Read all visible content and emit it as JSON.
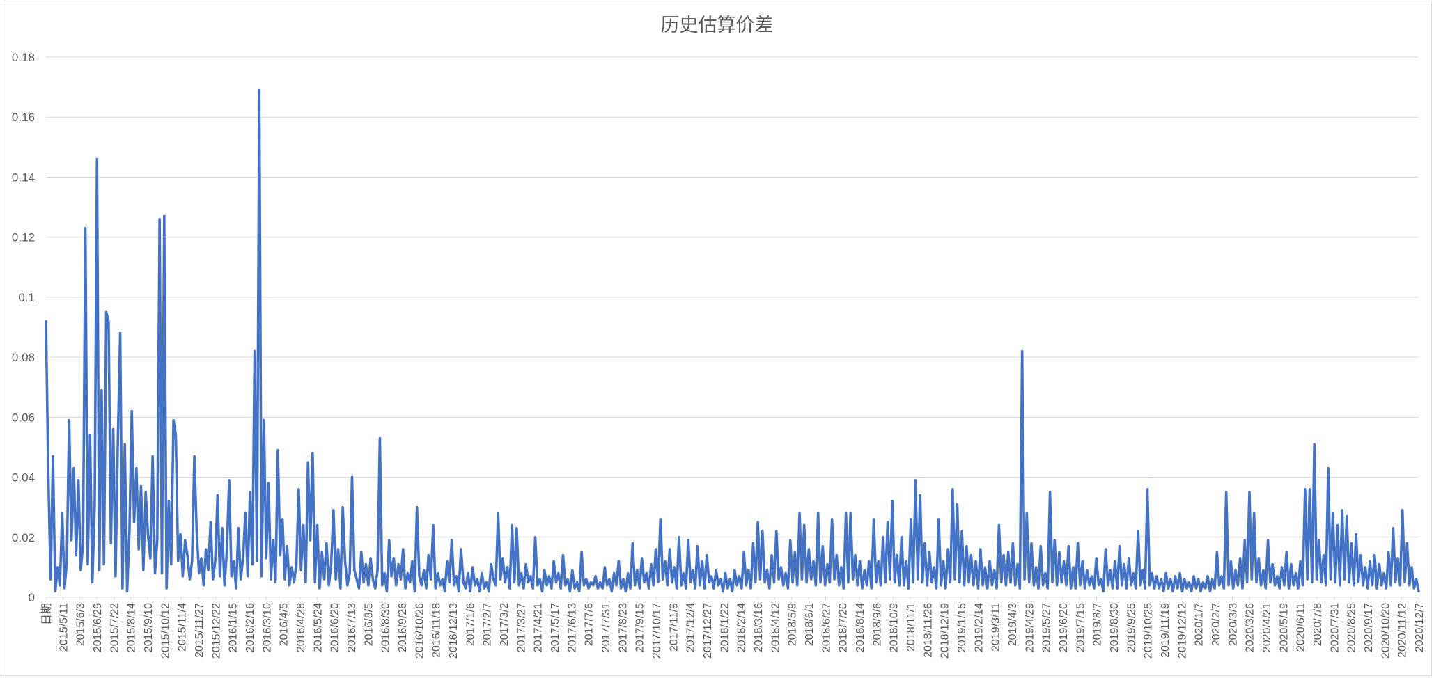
{
  "chart_data": {
    "type": "line",
    "title": "历史估算价差",
    "xlabel": "",
    "ylabel": "",
    "ylim": [
      0,
      0.18
    ],
    "y_ticks": [
      "0",
      "0.02",
      "0.04",
      "0.06",
      "0.08",
      "0.1",
      "0.12",
      "0.14",
      "0.16",
      "0.18"
    ],
    "grid": true,
    "legend": "none",
    "first_category_label": "日期",
    "x_tick_labels": [
      "2015/5/11",
      "2015/6/3",
      "2015/6/29",
      "2015/7/22",
      "2015/8/14",
      "2015/9/10",
      "2015/10/12",
      "2015/11/4",
      "2015/11/27",
      "2015/12/22",
      "2016/1/15",
      "2016/2/16",
      "2016/3/10",
      "2016/4/5",
      "2016/4/28",
      "2016/5/24",
      "2016/6/20",
      "2016/7/13",
      "2016/8/5",
      "2016/8/30",
      "2016/9/26",
      "2016/10/26",
      "2016/11/18",
      "2016/12/13",
      "2017/1/6",
      "2017/2/7",
      "2017/3/2",
      "2017/3/27",
      "2017/4/21",
      "2017/5/17",
      "2017/6/13",
      "2017/7/6",
      "2017/7/31",
      "2017/8/23",
      "2017/9/15",
      "2017/10/17",
      "2017/11/9",
      "2017/12/4",
      "2017/12/27",
      "2018/1/22",
      "2018/2/14",
      "2018/3/16",
      "2018/4/12",
      "2018/5/9",
      "2018/6/1",
      "2018/6/27",
      "2018/7/20",
      "2018/8/14",
      "2018/9/6",
      "2018/10/9",
      "2018/11/1",
      "2018/11/26",
      "2018/12/19",
      "2019/1/15",
      "2019/2/14",
      "2019/3/11",
      "2019/4/3",
      "2019/4/29",
      "2019/5/27",
      "2019/6/20",
      "2019/7/15",
      "2019/8/7",
      "2019/8/30",
      "2019/9/25",
      "2019/10/25",
      "2019/11/19",
      "2019/12/12",
      "2020/1/7",
      "2020/2/7",
      "2020/3/3",
      "2020/3/26",
      "2020/4/21",
      "2020/5/19",
      "2020/6/11",
      "2020/7/8",
      "2020/7/31",
      "2020/8/25",
      "2020/9/17",
      "2020/10/20",
      "2020/11/12",
      "2020/12/7"
    ],
    "series": [
      {
        "color": "#4472c4",
        "x_start": "2015/4/30",
        "x_end": "2020/12/31",
        "values": [
          0.092,
          0.041,
          0.006,
          0.047,
          0.002,
          0.01,
          0.004,
          0.028,
          0.003,
          0.012,
          0.059,
          0.019,
          0.043,
          0.014,
          0.039,
          0.009,
          0.018,
          0.123,
          0.011,
          0.054,
          0.005,
          0.031,
          0.146,
          0.009,
          0.069,
          0.011,
          0.095,
          0.092,
          0.018,
          0.056,
          0.007,
          0.052,
          0.088,
          0.003,
          0.051,
          0.002,
          0.022,
          0.062,
          0.025,
          0.043,
          0.016,
          0.037,
          0.009,
          0.035,
          0.021,
          0.013,
          0.047,
          0.008,
          0.019,
          0.126,
          0.008,
          0.127,
          0.003,
          0.032,
          0.011,
          0.059,
          0.054,
          0.012,
          0.021,
          0.007,
          0.019,
          0.014,
          0.006,
          0.012,
          0.047,
          0.022,
          0.008,
          0.013,
          0.004,
          0.016,
          0.009,
          0.025,
          0.006,
          0.012,
          0.034,
          0.007,
          0.023,
          0.004,
          0.015,
          0.039,
          0.007,
          0.012,
          0.003,
          0.023,
          0.006,
          0.013,
          0.028,
          0.007,
          0.035,
          0.011,
          0.082,
          0.012,
          0.169,
          0.007,
          0.059,
          0.013,
          0.038,
          0.006,
          0.019,
          0.005,
          0.049,
          0.014,
          0.026,
          0.006,
          0.017,
          0.004,
          0.01,
          0.005,
          0.011,
          0.036,
          0.009,
          0.024,
          0.005,
          0.045,
          0.019,
          0.048,
          0.005,
          0.024,
          0.003,
          0.015,
          0.006,
          0.018,
          0.004,
          0.011,
          0.029,
          0.006,
          0.016,
          0.003,
          0.03,
          0.012,
          0.004,
          0.008,
          0.04,
          0.009,
          0.006,
          0.003,
          0.015,
          0.005,
          0.011,
          0.004,
          0.013,
          0.006,
          0.003,
          0.009,
          0.053,
          0.004,
          0.008,
          0.002,
          0.019,
          0.007,
          0.013,
          0.004,
          0.011,
          0.006,
          0.016,
          0.003,
          0.008,
          0.005,
          0.012,
          0.002,
          0.03,
          0.007,
          0.004,
          0.009,
          0.003,
          0.014,
          0.006,
          0.024,
          0.003,
          0.008,
          0.004,
          0.006,
          0.002,
          0.012,
          0.005,
          0.019,
          0.004,
          0.007,
          0.002,
          0.016,
          0.005,
          0.003,
          0.008,
          0.002,
          0.01,
          0.004,
          0.006,
          0.002,
          0.008,
          0.003,
          0.005,
          0.002,
          0.011,
          0.006,
          0.004,
          0.028,
          0.006,
          0.013,
          0.005,
          0.01,
          0.003,
          0.024,
          0.005,
          0.023,
          0.004,
          0.008,
          0.003,
          0.011,
          0.005,
          0.007,
          0.003,
          0.02,
          0.004,
          0.006,
          0.002,
          0.009,
          0.004,
          0.007,
          0.003,
          0.012,
          0.005,
          0.008,
          0.003,
          0.014,
          0.004,
          0.006,
          0.002,
          0.009,
          0.003,
          0.005,
          0.002,
          0.015,
          0.004,
          0.006,
          0.003,
          0.005,
          0.004,
          0.007,
          0.003,
          0.005,
          0.003,
          0.01,
          0.004,
          0.006,
          0.002,
          0.008,
          0.004,
          0.012,
          0.003,
          0.006,
          0.002,
          0.008,
          0.003,
          0.018,
          0.004,
          0.009,
          0.003,
          0.013,
          0.005,
          0.008,
          0.003,
          0.011,
          0.004,
          0.016,
          0.005,
          0.026,
          0.006,
          0.012,
          0.004,
          0.016,
          0.005,
          0.01,
          0.003,
          0.02,
          0.004,
          0.008,
          0.003,
          0.019,
          0.005,
          0.009,
          0.003,
          0.017,
          0.004,
          0.012,
          0.003,
          0.014,
          0.005,
          0.007,
          0.003,
          0.009,
          0.004,
          0.006,
          0.002,
          0.008,
          0.003,
          0.006,
          0.002,
          0.009,
          0.004,
          0.007,
          0.003,
          0.015,
          0.004,
          0.009,
          0.003,
          0.018,
          0.005,
          0.025,
          0.006,
          0.022,
          0.005,
          0.009,
          0.003,
          0.014,
          0.005,
          0.022,
          0.006,
          0.01,
          0.004,
          0.008,
          0.003,
          0.019,
          0.005,
          0.015,
          0.004,
          0.028,
          0.006,
          0.024,
          0.005,
          0.016,
          0.006,
          0.012,
          0.004,
          0.028,
          0.005,
          0.017,
          0.004,
          0.011,
          0.005,
          0.026,
          0.006,
          0.014,
          0.004,
          0.01,
          0.003,
          0.028,
          0.005,
          0.028,
          0.006,
          0.014,
          0.004,
          0.012,
          0.003,
          0.009,
          0.004,
          0.012,
          0.003,
          0.026,
          0.005,
          0.012,
          0.004,
          0.02,
          0.005,
          0.025,
          0.006,
          0.032,
          0.005,
          0.014,
          0.004,
          0.02,
          0.004,
          0.012,
          0.003,
          0.026,
          0.005,
          0.039,
          0.006,
          0.034,
          0.005,
          0.018,
          0.004,
          0.015,
          0.005,
          0.01,
          0.003,
          0.026,
          0.004,
          0.012,
          0.003,
          0.016,
          0.005,
          0.036,
          0.006,
          0.031,
          0.005,
          0.022,
          0.004,
          0.017,
          0.005,
          0.014,
          0.004,
          0.012,
          0.003,
          0.016,
          0.004,
          0.01,
          0.003,
          0.012,
          0.004,
          0.009,
          0.003,
          0.024,
          0.005,
          0.014,
          0.004,
          0.015,
          0.005,
          0.018,
          0.004,
          0.011,
          0.003,
          0.082,
          0.006,
          0.028,
          0.005,
          0.018,
          0.004,
          0.01,
          0.003,
          0.017,
          0.004,
          0.008,
          0.003,
          0.035,
          0.005,
          0.019,
          0.004,
          0.015,
          0.005,
          0.012,
          0.004,
          0.017,
          0.003,
          0.01,
          0.003,
          0.018,
          0.004,
          0.012,
          0.003,
          0.009,
          0.004,
          0.007,
          0.003,
          0.013,
          0.004,
          0.006,
          0.002,
          0.016,
          0.004,
          0.009,
          0.003,
          0.012,
          0.003,
          0.017,
          0.004,
          0.011,
          0.003,
          0.013,
          0.004,
          0.008,
          0.003,
          0.022,
          0.004,
          0.009,
          0.003,
          0.036,
          0.004,
          0.008,
          0.003,
          0.007,
          0.003,
          0.006,
          0.002,
          0.008,
          0.003,
          0.006,
          0.002,
          0.007,
          0.003,
          0.008,
          0.002,
          0.006,
          0.003,
          0.005,
          0.002,
          0.007,
          0.003,
          0.006,
          0.002,
          0.005,
          0.003,
          0.007,
          0.002,
          0.006,
          0.003,
          0.015,
          0.004,
          0.007,
          0.003,
          0.035,
          0.004,
          0.012,
          0.003,
          0.009,
          0.004,
          0.013,
          0.003,
          0.019,
          0.005,
          0.035,
          0.006,
          0.028,
          0.005,
          0.013,
          0.004,
          0.009,
          0.003,
          0.019,
          0.005,
          0.011,
          0.004,
          0.007,
          0.003,
          0.01,
          0.004,
          0.015,
          0.003,
          0.011,
          0.004,
          0.008,
          0.003,
          0.012,
          0.004,
          0.036,
          0.006,
          0.036,
          0.005,
          0.051,
          0.006,
          0.019,
          0.005,
          0.014,
          0.004,
          0.043,
          0.006,
          0.028,
          0.005,
          0.024,
          0.004,
          0.029,
          0.006,
          0.027,
          0.005,
          0.018,
          0.004,
          0.021,
          0.005,
          0.014,
          0.004,
          0.01,
          0.003,
          0.012,
          0.004,
          0.014,
          0.003,
          0.011,
          0.004,
          0.008,
          0.003,
          0.015,
          0.004,
          0.023,
          0.005,
          0.013,
          0.004,
          0.029,
          0.005,
          0.018,
          0.004,
          0.01,
          0.003,
          0.006,
          0.002
        ]
      }
    ]
  }
}
